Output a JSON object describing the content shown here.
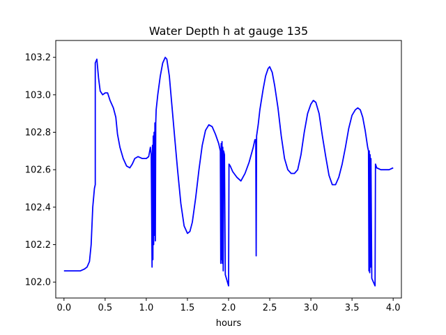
{
  "chart_data": {
    "type": "line",
    "title": "Water Depth h at gauge 135",
    "xlabel": "hours",
    "ylabel": "",
    "xlim": [
      -0.1,
      4.1
    ],
    "ylim": [
      101.915,
      103.29
    ],
    "xticks": [
      0.0,
      0.5,
      1.0,
      1.5,
      2.0,
      2.5,
      3.0,
      3.5,
      4.0
    ],
    "xtick_labels": [
      "0.0",
      "0.5",
      "1.0",
      "1.5",
      "2.0",
      "2.5",
      "3.0",
      "3.5",
      "4.0"
    ],
    "yticks": [
      102.0,
      102.2,
      102.4,
      102.6,
      102.8,
      103.0,
      103.2
    ],
    "ytick_labels": [
      "102.0",
      "102.2",
      "102.4",
      "102.6",
      "102.8",
      "103.0",
      "103.2"
    ],
    "grid": false,
    "legend": "none",
    "series": [
      {
        "color": "#0000ff",
        "points": [
          [
            0.0,
            102.06
          ],
          [
            0.1,
            102.06
          ],
          [
            0.2,
            102.06
          ],
          [
            0.25,
            102.07
          ],
          [
            0.28,
            102.08
          ],
          [
            0.31,
            102.11
          ],
          [
            0.33,
            102.2
          ],
          [
            0.35,
            102.4
          ],
          [
            0.37,
            102.5
          ],
          [
            0.38,
            102.52
          ],
          [
            0.38,
            103.17
          ],
          [
            0.4,
            103.19
          ],
          [
            0.42,
            103.09
          ],
          [
            0.44,
            103.02
          ],
          [
            0.47,
            103.0
          ],
          [
            0.5,
            103.01
          ],
          [
            0.53,
            103.01
          ],
          [
            0.56,
            102.97
          ],
          [
            0.6,
            102.93
          ],
          [
            0.63,
            102.88
          ],
          [
            0.65,
            102.79
          ],
          [
            0.68,
            102.72
          ],
          [
            0.72,
            102.66
          ],
          [
            0.76,
            102.62
          ],
          [
            0.8,
            102.61
          ],
          [
            0.83,
            102.63
          ],
          [
            0.86,
            102.66
          ],
          [
            0.9,
            102.67
          ],
          [
            0.95,
            102.66
          ],
          [
            1.0,
            102.66
          ],
          [
            1.03,
            102.67
          ],
          [
            1.05,
            102.72
          ],
          [
            1.06,
            102.68
          ],
          [
            1.07,
            102.08
          ],
          [
            1.075,
            102.73
          ],
          [
            1.08,
            102.12
          ],
          [
            1.085,
            102.78
          ],
          [
            1.09,
            102.2
          ],
          [
            1.095,
            102.8
          ],
          [
            1.1,
            102.25
          ],
          [
            1.105,
            102.85
          ],
          [
            1.11,
            102.22
          ],
          [
            1.115,
            102.85
          ],
          [
            1.12,
            102.92
          ],
          [
            1.14,
            103.0
          ],
          [
            1.17,
            103.1
          ],
          [
            1.2,
            103.17
          ],
          [
            1.23,
            103.2
          ],
          [
            1.25,
            103.19
          ],
          [
            1.28,
            103.1
          ],
          [
            1.31,
            102.95
          ],
          [
            1.35,
            102.75
          ],
          [
            1.38,
            102.6
          ],
          [
            1.42,
            102.42
          ],
          [
            1.46,
            102.3
          ],
          [
            1.5,
            102.26
          ],
          [
            1.53,
            102.27
          ],
          [
            1.56,
            102.32
          ],
          [
            1.6,
            102.45
          ],
          [
            1.64,
            102.6
          ],
          [
            1.68,
            102.73
          ],
          [
            1.72,
            102.81
          ],
          [
            1.76,
            102.84
          ],
          [
            1.8,
            102.83
          ],
          [
            1.84,
            102.79
          ],
          [
            1.88,
            102.74
          ],
          [
            1.9,
            102.7
          ],
          [
            1.905,
            102.1
          ],
          [
            1.91,
            102.74
          ],
          [
            1.915,
            102.12
          ],
          [
            1.92,
            102.75
          ],
          [
            1.925,
            102.1
          ],
          [
            1.93,
            102.72
          ],
          [
            1.935,
            102.06
          ],
          [
            1.94,
            102.7
          ],
          [
            1.95,
            102.68
          ],
          [
            1.96,
            102.04
          ],
          [
            1.98,
            102.01
          ],
          [
            2.0,
            101.98
          ],
          [
            2.005,
            102.63
          ],
          [
            2.02,
            102.62
          ],
          [
            2.05,
            102.59
          ],
          [
            2.1,
            102.56
          ],
          [
            2.15,
            102.54
          ],
          [
            2.2,
            102.58
          ],
          [
            2.25,
            102.64
          ],
          [
            2.3,
            102.72
          ],
          [
            2.32,
            102.76
          ],
          [
            2.33,
            102.76
          ],
          [
            2.335,
            102.14
          ],
          [
            2.34,
            102.78
          ],
          [
            2.36,
            102.84
          ],
          [
            2.38,
            102.92
          ],
          [
            2.42,
            103.03
          ],
          [
            2.45,
            103.1
          ],
          [
            2.48,
            103.14
          ],
          [
            2.5,
            103.15
          ],
          [
            2.53,
            103.12
          ],
          [
            2.56,
            103.05
          ],
          [
            2.6,
            102.93
          ],
          [
            2.64,
            102.78
          ],
          [
            2.68,
            102.66
          ],
          [
            2.72,
            102.6
          ],
          [
            2.76,
            102.58
          ],
          [
            2.8,
            102.58
          ],
          [
            2.84,
            102.6
          ],
          [
            2.88,
            102.68
          ],
          [
            2.92,
            102.8
          ],
          [
            2.96,
            102.9
          ],
          [
            3.0,
            102.95
          ],
          [
            3.03,
            102.97
          ],
          [
            3.06,
            102.96
          ],
          [
            3.1,
            102.9
          ],
          [
            3.14,
            102.78
          ],
          [
            3.18,
            102.67
          ],
          [
            3.22,
            102.57
          ],
          [
            3.26,
            102.52
          ],
          [
            3.3,
            102.52
          ],
          [
            3.34,
            102.56
          ],
          [
            3.38,
            102.63
          ],
          [
            3.42,
            102.72
          ],
          [
            3.46,
            102.82
          ],
          [
            3.5,
            102.89
          ],
          [
            3.54,
            102.92
          ],
          [
            3.57,
            102.93
          ],
          [
            3.6,
            102.92
          ],
          [
            3.63,
            102.88
          ],
          [
            3.66,
            102.81
          ],
          [
            3.69,
            102.72
          ],
          [
            3.7,
            102.7
          ],
          [
            3.705,
            102.06
          ],
          [
            3.71,
            102.7
          ],
          [
            3.715,
            102.05
          ],
          [
            3.72,
            102.68
          ],
          [
            3.725,
            102.08
          ],
          [
            3.73,
            102.66
          ],
          [
            3.74,
            102.02
          ],
          [
            3.76,
            102.0
          ],
          [
            3.78,
            101.98
          ],
          [
            3.785,
            102.63
          ],
          [
            3.8,
            102.61
          ],
          [
            3.85,
            102.6
          ],
          [
            3.9,
            102.6
          ],
          [
            3.95,
            102.6
          ],
          [
            4.0,
            102.61
          ]
        ]
      }
    ]
  }
}
